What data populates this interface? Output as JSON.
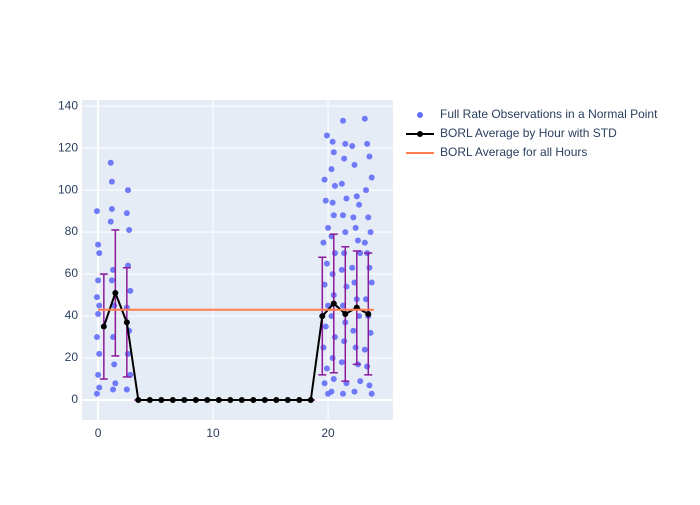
{
  "chart_data": {
    "type": "scatter",
    "xlim": [
      -1.4,
      25.65
    ],
    "ylim": [
      -9.5,
      142.9
    ],
    "xticks": [
      0,
      10,
      20
    ],
    "yticks": [
      0,
      20,
      40,
      60,
      80,
      100,
      120,
      140
    ],
    "grid": true,
    "legend": "outside-right",
    "series": [
      {
        "name": "Full Rate Observations in a Normal Point",
        "color": "#636efa",
        "mode": "markers",
        "x": [
          -0.1,
          0,
          0.1,
          0,
          -0.1,
          0.1,
          0,
          -0.1,
          0.1,
          0,
          0.1,
          -0.1,
          1.1,
          1.2,
          1.2,
          1.1,
          1.3,
          1.2,
          1.4,
          1.3,
          1.4,
          1.5,
          1.3,
          2.6,
          2.5,
          2.7,
          2.6,
          2.8,
          2.5,
          2.7,
          2.6,
          2.8,
          2.5,
          19.9,
          19.7,
          19.8,
          20,
          19.6,
          19.9,
          19.7,
          20,
          19.8,
          19.6,
          19.9,
          19.7,
          20,
          20.4,
          20.5,
          20.3,
          20.6,
          20.4,
          20.5,
          20.3,
          20.6,
          20.4,
          20.5,
          20.3,
          20.6,
          20.4,
          20.5,
          20.3,
          21.3,
          21.5,
          21.4,
          21.2,
          21.6,
          21.3,
          21.5,
          21.4,
          21.2,
          21.6,
          21.3,
          21.5,
          21.4,
          21.2,
          21.6,
          21.3,
          22.1,
          22.3,
          22.5,
          22.7,
          22.2,
          22.4,
          22.6,
          22.8,
          22.1,
          22.3,
          22.5,
          22.7,
          22.2,
          22.4,
          22.6,
          22.8,
          22.3,
          23.2,
          23.4,
          23.6,
          23.8,
          23.3,
          23.5,
          23.7,
          23.2,
          23.4,
          23.6,
          23.8,
          23.3,
          23.5,
          23.7,
          23.2,
          23.4,
          23.6,
          23.8
        ],
        "values": [
          90,
          74,
          70,
          57,
          49,
          45,
          41,
          30,
          22,
          12,
          6,
          3,
          113,
          104,
          91,
          85,
          62,
          57,
          45,
          30,
          17,
          8,
          5,
          100,
          89,
          81,
          64,
          52,
          44,
          33,
          22,
          12,
          5,
          126,
          105,
          95,
          82,
          75,
          65,
          55,
          45,
          35,
          25,
          15,
          8,
          3,
          123,
          118,
          110,
          102,
          94,
          88,
          78,
          70,
          60,
          50,
          40,
          30,
          20,
          10,
          4,
          133,
          122,
          115,
          103,
          96,
          88,
          80,
          70,
          62,
          54,
          45,
          37,
          28,
          18,
          8,
          3,
          121,
          112,
          97,
          93,
          87,
          82,
          76,
          70,
          63,
          56,
          48,
          40,
          33,
          25,
          17,
          9,
          4,
          134,
          122,
          116,
          106,
          100,
          87,
          80,
          75,
          70,
          63,
          56,
          48,
          40,
          32,
          24,
          16,
          7,
          3
        ]
      },
      {
        "name": "BORL Average by Hour with STD",
        "color": "#000000",
        "mode": "lines+markers",
        "error_color": "#8b1a9b",
        "x": [
          0.5,
          1.5,
          2.5,
          3.5,
          4.5,
          5.5,
          6.5,
          7.5,
          8.5,
          9.5,
          10.5,
          11.5,
          12.5,
          13.5,
          14.5,
          15.5,
          16.5,
          17.5,
          18.5,
          19.5,
          20.5,
          21.5,
          22.5,
          23.5
        ],
        "values": [
          35,
          51,
          37,
          0,
          0,
          0,
          0,
          0,
          0,
          0,
          0,
          0,
          0,
          0,
          0,
          0,
          0,
          0,
          0,
          40,
          46,
          41,
          44,
          41
        ],
        "errors": [
          25,
          30,
          26,
          0,
          0,
          0,
          0,
          0,
          0,
          0,
          0,
          0,
          0,
          0,
          0,
          0,
          0,
          0,
          0,
          28,
          33,
          32,
          27,
          29
        ]
      },
      {
        "name": "BORL Average for all Hours",
        "color": "#ff7f50",
        "mode": "lines",
        "x": [
          0,
          24
        ],
        "values": [
          43,
          43
        ]
      }
    ]
  }
}
